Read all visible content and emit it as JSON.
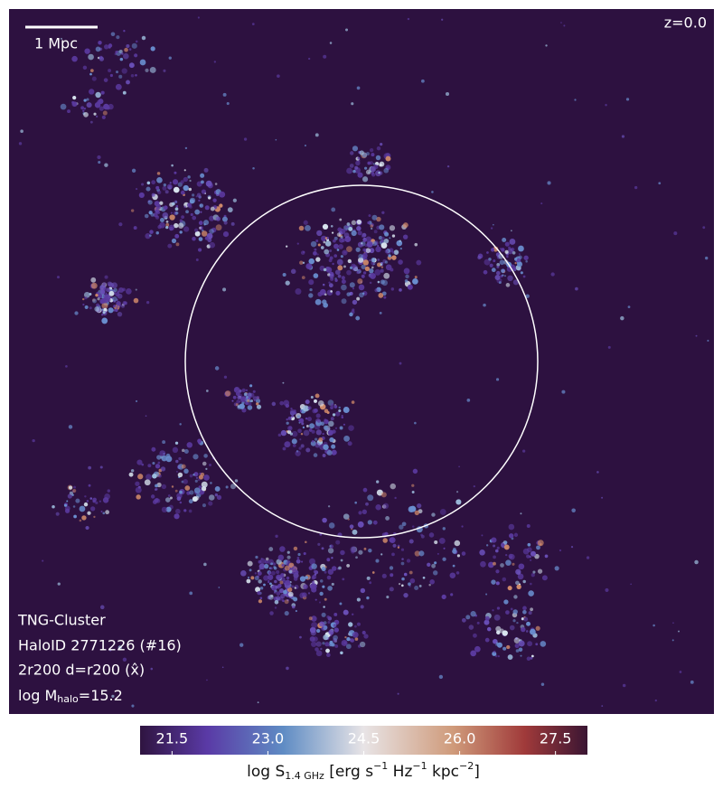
{
  "chart_data": {
    "type": "map",
    "annotations": {
      "scale_bar": "1 Mpc",
      "redshift": "z=0.0",
      "simulation": "TNG-Cluster",
      "halo": "HaloID 2771226 (#16)",
      "projection": "2r200 d=r200 (x̂)",
      "mass": [
        "log M",
        "halo",
        "=15.2"
      ]
    },
    "colorbar_label": [
      "log S",
      "1.4 GHz",
      " [erg s",
      "−1",
      " Hz",
      "−1",
      " kpc",
      "−2",
      "]"
    ],
    "clim": [
      21,
      28
    ],
    "cticks": [
      21.5,
      {
        "value": 23,
        "label": "23.0"
      },
      24.5,
      {
        "value": 26,
        "label": "26.0"
      },
      27.5
    ]
  }
}
